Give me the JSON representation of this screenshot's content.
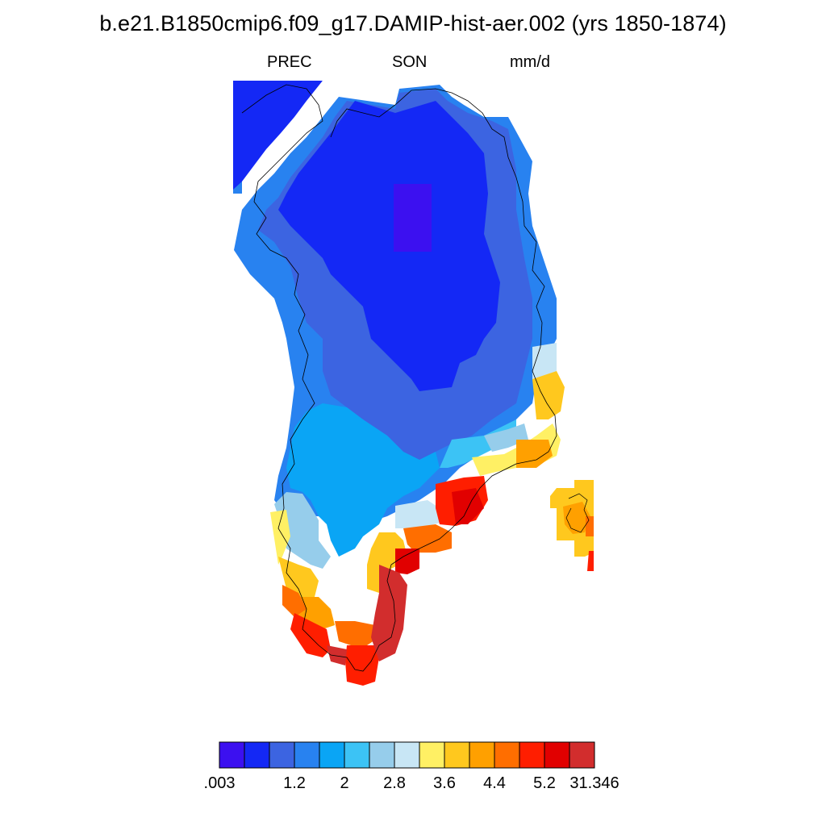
{
  "title": "b.e21.B1850cmip6.f09_g17.DAMIP-hist-aer.002 (yrs 1850-1874)",
  "subtitle_left": "PREC",
  "subtitle_center": "SON",
  "subtitle_right": "mm/d",
  "colorbar": {
    "colors": [
      "#3c10f0",
      "#1428f5",
      "#3c64e1",
      "#2882f0",
      "#0aa5f5",
      "#3cc3f5",
      "#96cdeb",
      "#c8e6f5",
      "#fff064",
      "#ffc81e",
      "#ffa000",
      "#ff6e00",
      "#ff1e00",
      "#e10000",
      "#d22d2d"
    ],
    "labels": [
      ".003",
      "",
      "1.2",
      "2",
      "2.8",
      "3.6",
      "4.4",
      "5.2",
      "31.346"
    ]
  },
  "map": {
    "region": "Greenland",
    "field": "PREC",
    "season": "SON",
    "units": "mm/d"
  }
}
